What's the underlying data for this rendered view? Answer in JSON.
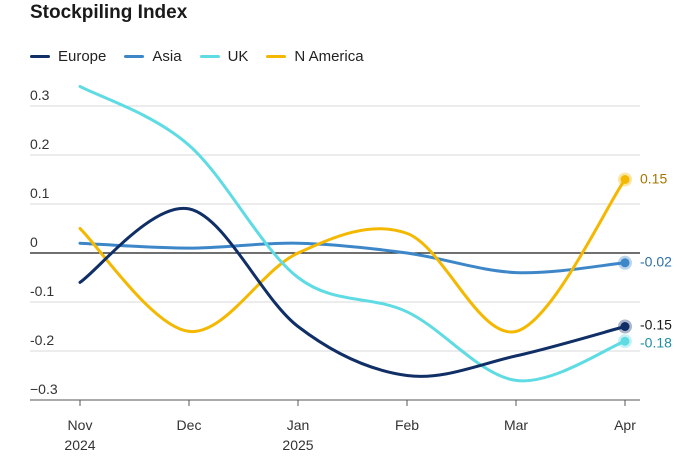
{
  "chart_data": {
    "type": "line",
    "title": "Stockpiling Index",
    "x": [
      "Nov 2024",
      "Dec",
      "Jan 2025",
      "Feb",
      "Mar",
      "Apr"
    ],
    "x_tick_labels": [
      [
        "Nov",
        "2024"
      ],
      [
        "Dec"
      ],
      [
        "Jan",
        "2025"
      ],
      [
        "Feb"
      ],
      [
        "Mar"
      ],
      [
        "Apr"
      ]
    ],
    "y_ticks": [
      0.3,
      0.2,
      0.1,
      0,
      -0.1,
      -0.2,
      -0.3
    ],
    "y_tick_labels": [
      "0.3",
      "0.2",
      "0.1",
      "0",
      "-0.1",
      "-0.2",
      "−0.3"
    ],
    "ylim": [
      -0.3,
      0.32
    ],
    "xlabel": "",
    "ylabel": "",
    "grid": true,
    "legend_position": "top-left",
    "series": [
      {
        "name": "Europe",
        "color": "#0f2f66",
        "values": [
          -0.06,
          0.09,
          -0.15,
          -0.25,
          -0.21,
          -0.15
        ],
        "end_label": "-0.15",
        "end_label_color": "#1a1a1a"
      },
      {
        "name": "Asia",
        "color": "#3d87c9",
        "values": [
          0.02,
          0.01,
          0.02,
          0.0,
          -0.04,
          -0.02
        ],
        "end_label": "-0.02",
        "end_label_color": "#2f6ea8"
      },
      {
        "name": "UK",
        "color": "#5fdbe3",
        "values": [
          0.34,
          0.22,
          -0.05,
          -0.12,
          -0.26,
          -0.18
        ],
        "end_label": "-0.18",
        "end_label_color": "#1d8ea3"
      },
      {
        "name": "N America",
        "color": "#f5b800",
        "values": [
          0.05,
          -0.16,
          0.0,
          0.04,
          -0.16,
          0.15
        ],
        "end_label": "0.15",
        "end_label_color": "#a87600"
      }
    ]
  }
}
